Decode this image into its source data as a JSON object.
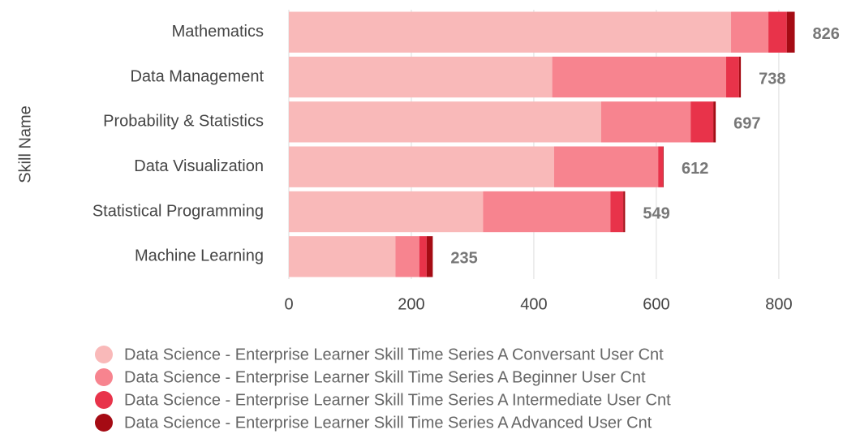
{
  "chart_data": {
    "type": "bar",
    "orientation": "horizontal",
    "stacked": true,
    "y_label": "Skill Name",
    "categories": [
      "Mathematics",
      "Data Management",
      "Probability & Statistics",
      "Data Visualization",
      "Statistical Programming",
      "Machine Learning"
    ],
    "series": [
      {
        "name": "Data Science - Enterprise Learner Skill Time Series A Conversant User Cnt",
        "color": "#f9b9b9",
        "values": [
          722,
          430,
          510,
          433,
          317,
          174
        ]
      },
      {
        "name": "Data Science - Enterprise Learner Skill Time Series A Beginner User Cnt",
        "color": "#f7848f",
        "values": [
          61,
          284,
          146,
          170,
          208,
          39
        ]
      },
      {
        "name": "Data Science - Enterprise Learner Skill Time Series A Intermediate User Cnt",
        "color": "#e8334a",
        "values": [
          30,
          21,
          37,
          8,
          21,
          12
        ]
      },
      {
        "name": "Data Science - Enterprise Learner Skill Time Series A Advanced User Cnt",
        "color": "#a50b14",
        "values": [
          13,
          3,
          4,
          1,
          3,
          10
        ]
      }
    ],
    "totals": [
      826,
      738,
      697,
      612,
      549,
      235
    ],
    "xlim": [
      0,
      820
    ],
    "xticks": [
      0,
      200,
      400,
      600,
      800
    ],
    "grid": true
  }
}
